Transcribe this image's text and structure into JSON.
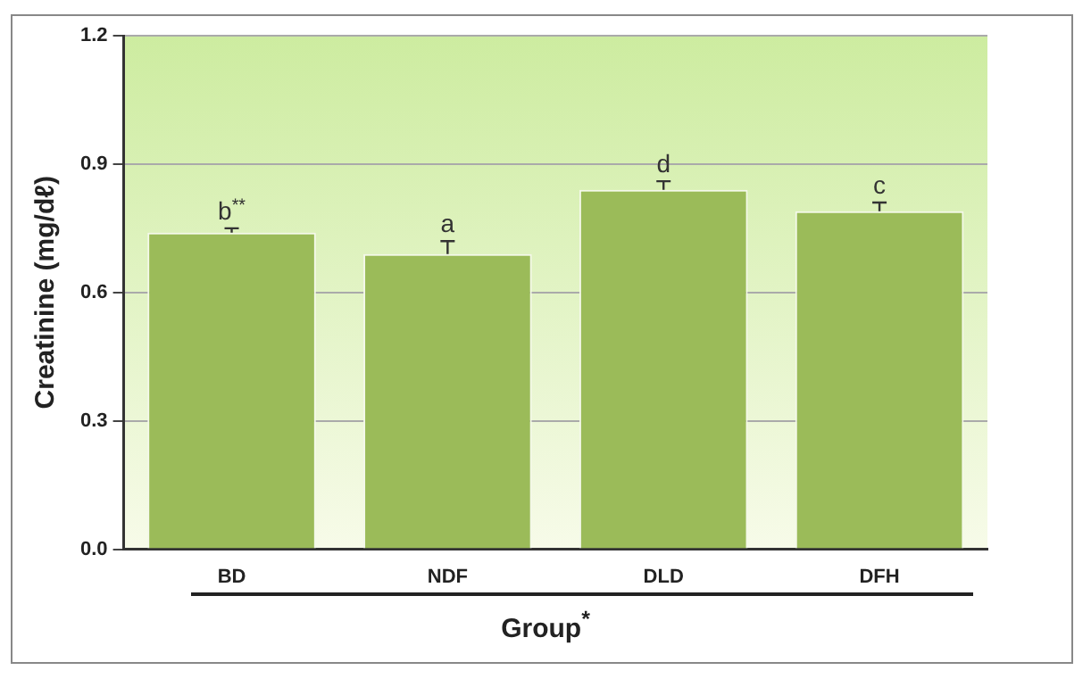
{
  "chart_data": {
    "type": "bar",
    "xlabel": "Group$^{*}$",
    "ylabel": "Creatinine (mg/dℓ)",
    "categories": [
      "BD",
      "NDF",
      "DLD",
      "DFH"
    ],
    "values": [
      0.74,
      0.69,
      0.84,
      0.79
    ],
    "errors": [
      [
        0.74,
        0.75
      ],
      [
        0.69,
        0.72
      ],
      [
        0.84,
        0.86
      ],
      [
        0.79,
        0.81
      ]
    ],
    "color": "#9bbb59",
    "ylim": [
      0,
      1.2
    ],
    "yticks": [
      {
        "value": 0,
        "label": "0.0"
      },
      {
        "value": 0.3,
        "label": "0.3"
      },
      {
        "value": 0.6,
        "label": "0.6"
      },
      {
        "value": 0.9,
        "label": "0.9"
      },
      {
        "value": 1.2,
        "label": "1.2"
      }
    ],
    "grid": "y",
    "legend": false,
    "annotations": [
      {
        "text": "b$^{**}$",
        "x": "BD",
        "y": 0.75
      },
      {
        "text": "a",
        "x": "NDF",
        "y": 0.72
      },
      {
        "text": "d",
        "x": "DLD",
        "y": 0.86
      },
      {
        "text": "c",
        "x": "DFH",
        "y": 0.81
      }
    ]
  }
}
